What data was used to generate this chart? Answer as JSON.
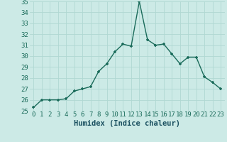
{
  "x": [
    0,
    1,
    2,
    3,
    4,
    5,
    6,
    7,
    8,
    9,
    10,
    11,
    12,
    13,
    14,
    15,
    16,
    17,
    18,
    19,
    20,
    21,
    22,
    23
  ],
  "y": [
    25.3,
    26.0,
    26.0,
    26.0,
    26.1,
    26.8,
    27.0,
    27.2,
    28.6,
    29.3,
    30.4,
    31.1,
    30.9,
    35.0,
    31.5,
    31.0,
    31.1,
    30.2,
    29.3,
    29.9,
    29.9,
    28.1,
    27.6,
    27.0
  ],
  "line_color": "#1a6b5a",
  "marker": "+",
  "bg_color": "#cceae6",
  "grid_color": "#b0d8d2",
  "xlabel": "Humidex (Indice chaleur)",
  "ylim": [
    25,
    35
  ],
  "xlim": [
    -0.5,
    23.5
  ],
  "yticks": [
    25,
    26,
    27,
    28,
    29,
    30,
    31,
    32,
    33,
    34,
    35
  ],
  "xticks": [
    0,
    1,
    2,
    3,
    4,
    5,
    6,
    7,
    8,
    9,
    10,
    11,
    12,
    13,
    14,
    15,
    16,
    17,
    18,
    19,
    20,
    21,
    22,
    23
  ],
  "xlabel_fontsize": 7.5,
  "tick_fontsize": 6.5,
  "line_width": 1.0,
  "marker_size": 3.5,
  "marker_edge_width": 1.2
}
